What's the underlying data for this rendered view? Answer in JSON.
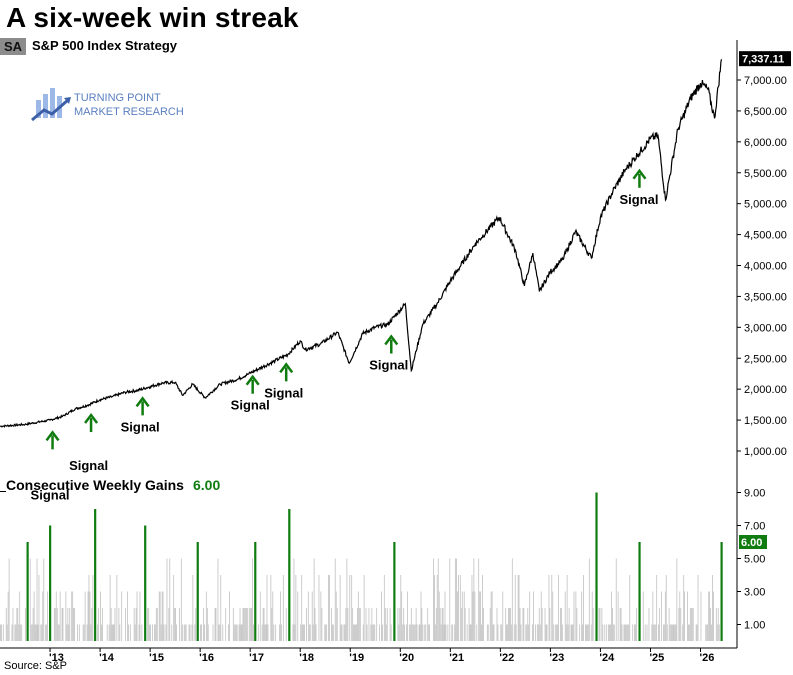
{
  "header": {
    "title": "A six-week win streak",
    "tag": "SA",
    "series_name": "S&P 500 Index  Strategy"
  },
  "logo": {
    "line1": "TURNING POINT",
    "line2": "MARKET RESEARCH"
  },
  "lower_panel": {
    "title": "Consecutive Weekly Gains",
    "value": "6.00"
  },
  "source": "Source: S&P",
  "colors": {
    "price_line": "#000000",
    "bars_gray": "#c8c8c8",
    "bars_green": "#107c10",
    "arrow_green": "#107c10",
    "last_price_tag": "#000000",
    "last_bar_tag": "#107c10"
  },
  "chart_data": [
    {
      "type": "line",
      "name": "S&P 500 Index",
      "title": "A six-week win streak",
      "ylim": [
        500,
        7600
      ],
      "yticks": [
        1000,
        1500,
        2000,
        2500,
        3000,
        3500,
        4000,
        4500,
        5000,
        5500,
        6000,
        6500,
        7000
      ],
      "ytick_labels": [
        "1,000.00",
        "1,500.00",
        "2,000.00",
        "2,500.00",
        "3,000.00",
        "3,500.00",
        "4,000.00",
        "4,500.00",
        "5,000.00",
        "5,500.00",
        "6,000.00",
        "6,500.00",
        "7,000.00"
      ],
      "last_value_label": "7,337.11",
      "x_ticks": [
        2013,
        2014,
        2015,
        2016,
        2017,
        2018,
        2019,
        2020,
        2021,
        2022,
        2023,
        2024,
        2025,
        2026
      ],
      "x_tick_labels": [
        "'13",
        "'14",
        "'15",
        "'16",
        "'17",
        "'18",
        "'19",
        "'20",
        "'21",
        "'22",
        "'23",
        "'24",
        "'25",
        "'26"
      ],
      "points": [
        [
          2012.0,
          1400
        ],
        [
          2012.5,
          1430
        ],
        [
          2013.0,
          1500
        ],
        [
          2013.25,
          1560
        ],
        [
          2013.5,
          1680
        ],
        [
          2013.75,
          1740
        ],
        [
          2014.0,
          1830
        ],
        [
          2014.25,
          1880
        ],
        [
          2014.5,
          1950
        ],
        [
          2014.75,
          1980
        ],
        [
          2015.0,
          2040
        ],
        [
          2015.25,
          2100
        ],
        [
          2015.5,
          2110
        ],
        [
          2015.65,
          1900
        ],
        [
          2015.85,
          2080
        ],
        [
          2016.1,
          1860
        ],
        [
          2016.4,
          2080
        ],
        [
          2016.75,
          2160
        ],
        [
          2016.95,
          2240
        ],
        [
          2017.25,
          2360
        ],
        [
          2017.5,
          2460
        ],
        [
          2017.75,
          2560
        ],
        [
          2018.0,
          2780
        ],
        [
          2018.1,
          2640
        ],
        [
          2018.4,
          2730
        ],
        [
          2018.75,
          2920
        ],
        [
          2018.98,
          2420
        ],
        [
          2019.25,
          2900
        ],
        [
          2019.5,
          3000
        ],
        [
          2019.75,
          3050
        ],
        [
          2020.1,
          3380
        ],
        [
          2020.22,
          2300
        ],
        [
          2020.45,
          3050
        ],
        [
          2020.75,
          3400
        ],
        [
          2021.0,
          3750
        ],
        [
          2021.5,
          4350
        ],
        [
          2021.98,
          4780
        ],
        [
          2022.3,
          4250
        ],
        [
          2022.48,
          3670
        ],
        [
          2022.65,
          4200
        ],
        [
          2022.78,
          3580
        ],
        [
          2023.0,
          3900
        ],
        [
          2023.25,
          4100
        ],
        [
          2023.5,
          4550
        ],
        [
          2023.82,
          4120
        ],
        [
          2024.0,
          4780
        ],
        [
          2024.25,
          5200
        ],
        [
          2024.5,
          5550
        ],
        [
          2024.75,
          5800
        ],
        [
          2025.0,
          6050
        ],
        [
          2025.15,
          6100
        ],
        [
          2025.3,
          5060
        ],
        [
          2025.55,
          6200
        ],
        [
          2025.8,
          6700
        ],
        [
          2026.0,
          6950
        ],
        [
          2026.15,
          6850
        ],
        [
          2026.28,
          6380
        ],
        [
          2026.42,
          7337.11
        ]
      ],
      "annotations": [
        {
          "x": 2013.05,
          "y": 1350,
          "text": "Signal",
          "label_below": true
        },
        {
          "x": 2013.82,
          "y": 1630,
          "text": "Signal",
          "label_below": true
        },
        {
          "x": 2014.85,
          "y": 1900,
          "text": "Signal",
          "label_below": true
        },
        {
          "x": 2017.05,
          "y": 2250,
          "text": "Signal",
          "label_below": true
        },
        {
          "x": 2017.72,
          "y": 2450,
          "text": "Signal",
          "label_below": true
        },
        {
          "x": 2019.82,
          "y": 2900,
          "text": "Signal",
          "label_below": true
        },
        {
          "x": 2024.78,
          "y": 5580,
          "text": "Signal",
          "label_below": true
        }
      ]
    },
    {
      "type": "bar",
      "name": "Consecutive Weekly Gains",
      "ylim": [
        0,
        10
      ],
      "yticks": [
        1,
        3,
        5,
        7,
        9
      ],
      "ytick_labels": [
        "1.00",
        "3.00",
        "5.00",
        "7.00",
        "9.00"
      ],
      "last_value_label": "6.00",
      "note": "weekly bars; green bars mark streaks of 6+ weeks",
      "highlight_bars": [
        {
          "x": 2012.55,
          "value": 6
        },
        {
          "x": 2013.0,
          "value": 7
        },
        {
          "x": 2013.9,
          "value": 8
        },
        {
          "x": 2014.9,
          "value": 7
        },
        {
          "x": 2015.95,
          "value": 6
        },
        {
          "x": 2017.1,
          "value": 6
        },
        {
          "x": 2017.78,
          "value": 8
        },
        {
          "x": 2019.88,
          "value": 6
        },
        {
          "x": 2023.92,
          "value": 9
        },
        {
          "x": 2024.78,
          "value": 6
        },
        {
          "x": 2026.42,
          "value": 6
        }
      ]
    }
  ]
}
